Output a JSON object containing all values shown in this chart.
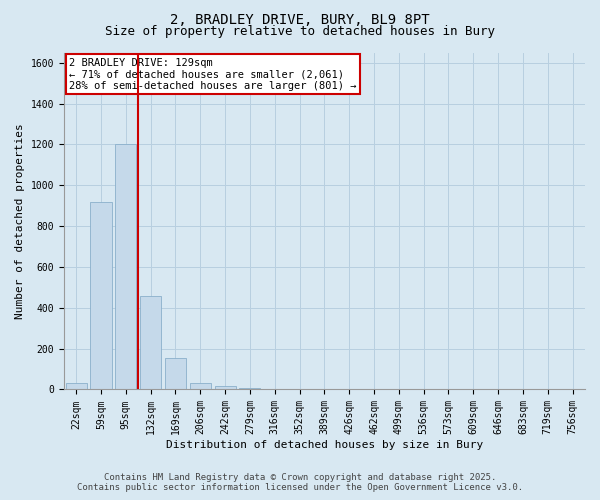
{
  "title_line1": "2, BRADLEY DRIVE, BURY, BL9 8PT",
  "title_line2": "Size of property relative to detached houses in Bury",
  "xlabel": "Distribution of detached houses by size in Bury",
  "ylabel": "Number of detached properties",
  "categories": [
    "22sqm",
    "59sqm",
    "95sqm",
    "132sqm",
    "169sqm",
    "206sqm",
    "242sqm",
    "279sqm",
    "316sqm",
    "352sqm",
    "389sqm",
    "426sqm",
    "462sqm",
    "499sqm",
    "536sqm",
    "573sqm",
    "609sqm",
    "646sqm",
    "683sqm",
    "719sqm",
    "756sqm"
  ],
  "values": [
    30,
    920,
    1200,
    460,
    155,
    30,
    15,
    5,
    3,
    0,
    0,
    0,
    0,
    0,
    0,
    0,
    0,
    0,
    0,
    0,
    0
  ],
  "bar_color": "#c5d9ea",
  "bar_edge_color": "#8ab0cb",
  "vline_x": 2.5,
  "vline_color": "#cc0000",
  "vline_label_title": "2 BRADLEY DRIVE: 129sqm",
  "vline_label_line2": "← 71% of detached houses are smaller (2,061)",
  "vline_label_line3": "28% of semi-detached houses are larger (801) →",
  "annotation_box_edge_color": "#cc0000",
  "ylim": [
    0,
    1650
  ],
  "yticks": [
    0,
    200,
    400,
    600,
    800,
    1000,
    1200,
    1400,
    1600
  ],
  "grid_color": "#b8cfe0",
  "bg_color": "#d8e8f2",
  "plot_bg_color": "#d8e8f2",
  "footer_line1": "Contains HM Land Registry data © Crown copyright and database right 2025.",
  "footer_line2": "Contains public sector information licensed under the Open Government Licence v3.0.",
  "title_fontsize": 10,
  "subtitle_fontsize": 9,
  "axis_label_fontsize": 8,
  "tick_fontsize": 7,
  "annotation_fontsize": 7.5,
  "footer_fontsize": 6.5
}
